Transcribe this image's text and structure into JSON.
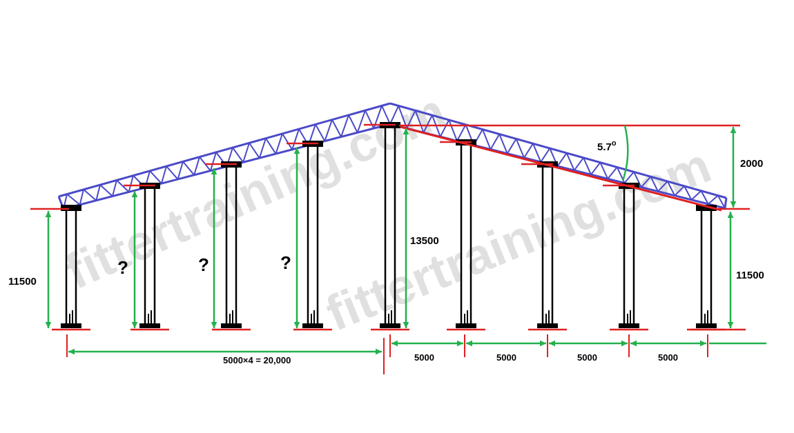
{
  "watermark": [
    "fittertraining.com",
    "fittertraining.com"
  ],
  "dimensions": {
    "left_height": "11500",
    "unknown_heights": [
      "?",
      "?",
      "?"
    ],
    "center_height": "13500",
    "angle": "5.7",
    "angle_degree_mark": "o",
    "rise": "2000",
    "right_height": "11500",
    "left_span": "5000×4 =  20,000",
    "bay_spans": [
      "5000",
      "5000",
      "5000",
      "5000"
    ]
  }
}
